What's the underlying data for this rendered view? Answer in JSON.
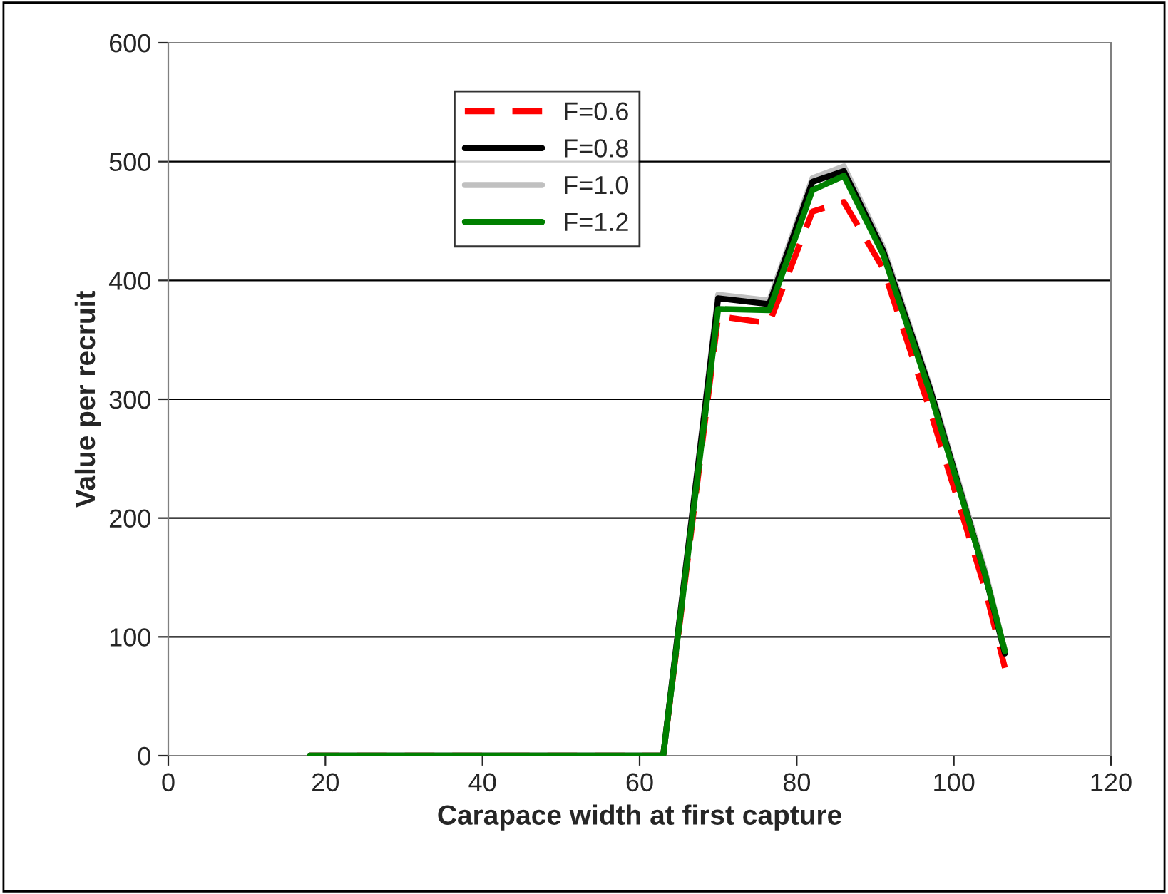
{
  "chart_data": {
    "type": "line",
    "xlabel": "Carapace width at first capture",
    "ylabel": "Value per recruit",
    "xlim": [
      0,
      120
    ],
    "xticks": [
      0,
      20,
      40,
      60,
      80,
      100,
      120
    ],
    "ylim": [
      0,
      600
    ],
    "yticks": [
      0,
      100,
      200,
      300,
      400,
      500,
      600
    ],
    "grid": "y",
    "legend": "top left",
    "marker": "none",
    "x": [
      18,
      63,
      70,
      76.5,
      82,
      86,
      91,
      97,
      104,
      106.5
    ],
    "series": [
      {
        "name": "F=0.6",
        "color": "#ff0000",
        "line_style": "dashed",
        "values": [
          0,
          0,
          370,
          364,
          458,
          466,
          410,
          290,
          140,
          74
        ]
      },
      {
        "name": "F=0.8",
        "color": "#000000",
        "line_style": "solid",
        "values": [
          0,
          0,
          385,
          380,
          483,
          492,
          425,
          308,
          152,
          86
        ]
      },
      {
        "name": "F=1.0",
        "color": "#c0c0c0",
        "line_style": "solid",
        "values": [
          0,
          0,
          388,
          383,
          486,
          496,
          428,
          310,
          155,
          88
        ]
      },
      {
        "name": "F=1.2",
        "color": "#008000",
        "line_style": "solid",
        "values": [
          0,
          0,
          376,
          375,
          476,
          488,
          422,
          305,
          152,
          88
        ]
      }
    ]
  }
}
